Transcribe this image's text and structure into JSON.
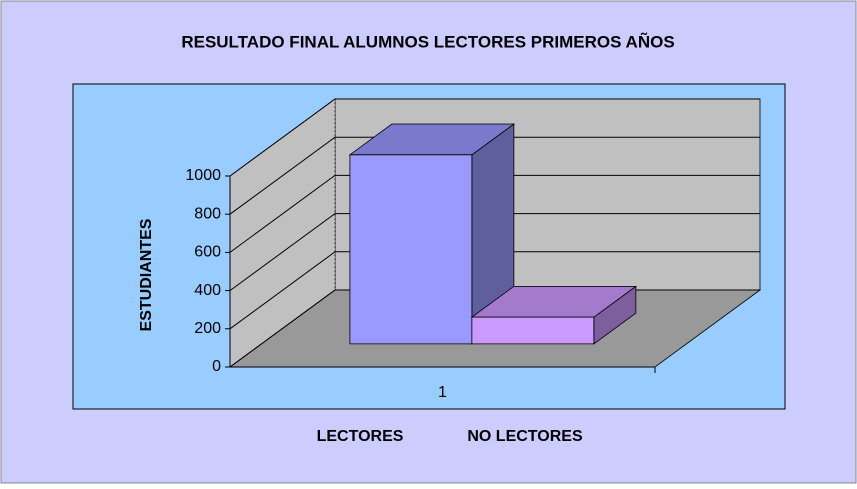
{
  "chart_data": {
    "type": "bar3d",
    "title": "RESULTADO FINAL ALUMNOS LECTORES PRIMEROS AÑOS",
    "y_label": "ESTUDIANTES",
    "categories": [
      "1"
    ],
    "series": [
      {
        "name": "LECTORES",
        "color": "#9999ff",
        "values": [
          990
        ]
      },
      {
        "name": "NO LECTORES",
        "color": "#cc99ff",
        "values": [
          140
        ]
      }
    ],
    "ylim": [
      0,
      1000
    ],
    "yticks": [
      0,
      200,
      400,
      600,
      800,
      1000
    ],
    "grid": true,
    "legend": "bottom"
  }
}
